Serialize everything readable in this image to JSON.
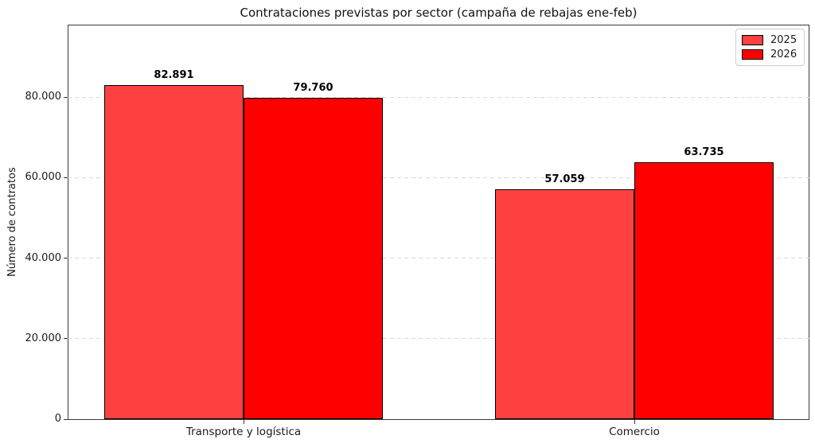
{
  "chart_data": {
    "type": "bar",
    "title": "Contrataciones previstas por sector (campaña de rebajas ene-feb)",
    "xlabel": "",
    "ylabel": "Número de contratos",
    "categories": [
      "Transporte y logística",
      "Comercio"
    ],
    "series": [
      {
        "name": "2025",
        "color": "#ff4040",
        "values": [
          82891,
          57059
        ],
        "value_labels": [
          "82.891",
          "57.059"
        ]
      },
      {
        "name": "2026",
        "color": "#ff0000",
        "values": [
          79760,
          63735
        ],
        "value_labels": [
          "79.760",
          "63.735"
        ]
      }
    ],
    "ylim": [
      0,
      98000
    ],
    "yticks": [
      0,
      20000,
      40000,
      60000,
      80000
    ],
    "ytick_labels": [
      "0",
      "20.000",
      "40.000",
      "60.000",
      "80.000"
    ],
    "grid": "horizontal-dashed",
    "grid_color": "#d9d9d9",
    "bar_edge_color": "#000000",
    "legend_position": "upper-right"
  }
}
